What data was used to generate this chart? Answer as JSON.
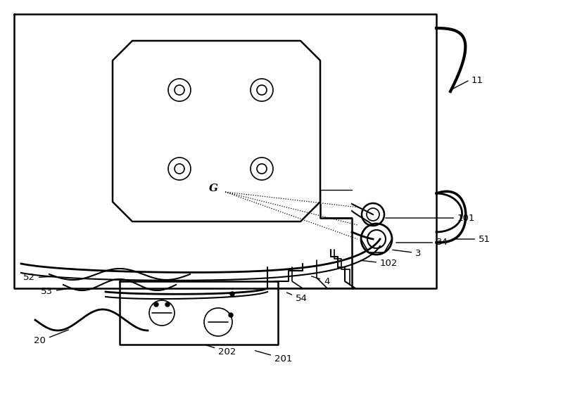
{
  "background_color": "#ffffff",
  "line_color": "#000000",
  "figure_width": 8.0,
  "figure_height": 5.66,
  "dpi": 100
}
